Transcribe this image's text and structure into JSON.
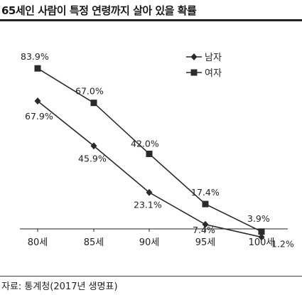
{
  "header": {
    "title": "65세인 사람이 특정 연령까지 살아 있을 확률"
  },
  "footer": {
    "source": "자료: 통계청(2017년 생명표)"
  },
  "chart_data": {
    "type": "line",
    "categories": [
      "80세",
      "85세",
      "90세",
      "95세",
      "100세"
    ],
    "series": [
      {
        "name": "남자",
        "marker": "diamond",
        "values": [
          67.9,
          45.9,
          23.1,
          7.4,
          1.2
        ],
        "labels": [
          "67.9%",
          "45.9%",
          "23.1%",
          "7.4%",
          "1.2%"
        ]
      },
      {
        "name": "여자",
        "marker": "square",
        "values": [
          83.9,
          67.0,
          42.0,
          17.4,
          3.9
        ],
        "labels": [
          "83.9%",
          "67.0%",
          "42.0%",
          "17.4%",
          "3.9%"
        ]
      }
    ],
    "ylim": [
      0,
      100
    ],
    "grid": false,
    "legend": "top-right",
    "colors": {
      "line": "#2a2a2a",
      "marker": "#2a2a2a"
    }
  }
}
